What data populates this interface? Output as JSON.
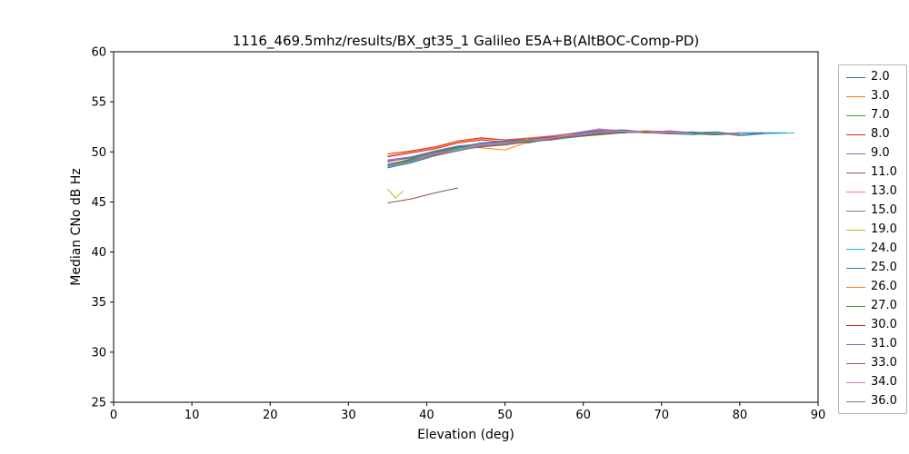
{
  "figure": {
    "title": "1116_469.5mhz/results/BX_gt35_1 Galileo E5A+B(AltBOC-Comp-PD)",
    "xlabel": "Elevation (deg)",
    "ylabel": "Median CNo dB Hz"
  },
  "chart_data": {
    "type": "line",
    "title": "1116_469.5mhz/results/BX_gt35_1 Galileo E5A+B(AltBOC-Comp-PD)",
    "xlabel": "Elevation (deg)",
    "ylabel": "Median CNo dB Hz",
    "xlim": [
      0,
      90
    ],
    "ylim": [
      25,
      60
    ],
    "xticks": [
      0,
      10,
      20,
      30,
      40,
      50,
      60,
      70,
      80,
      90
    ],
    "yticks": [
      25,
      30,
      35,
      40,
      45,
      50,
      55,
      60
    ],
    "grid": false,
    "legend_position": "right",
    "series": [
      {
        "name": "2.0",
        "color": "#1f77b4",
        "x": [
          35,
          38,
          41,
          44,
          47,
          50,
          53,
          56,
          59,
          62,
          65,
          68,
          71,
          74,
          77,
          80,
          83,
          86
        ],
        "y": [
          48.4,
          48.9,
          49.6,
          50.2,
          50.5,
          50.8,
          51.0,
          51.3,
          51.6,
          52.0,
          51.9,
          52.1,
          51.8,
          51.9,
          52.0,
          51.7,
          51.9,
          51.9
        ]
      },
      {
        "name": "3.0",
        "color": "#ff7f0e",
        "x": [
          35,
          38,
          41,
          44,
          47,
          50,
          53,
          56,
          59,
          62,
          65,
          68,
          71,
          74,
          77
        ],
        "y": [
          49.0,
          49.4,
          50.1,
          50.6,
          50.4,
          50.2,
          51.0,
          51.2,
          51.5,
          51.8,
          51.9,
          52.0,
          52.0,
          51.8,
          51.7
        ]
      },
      {
        "name": "7.0",
        "color": "#2ca02c",
        "x": [
          36,
          38,
          41,
          44,
          47,
          50,
          53,
          56,
          59,
          62,
          65,
          68,
          71,
          74,
          77,
          80
        ],
        "y": [
          48.7,
          49.1,
          49.8,
          50.3,
          50.6,
          51.0,
          50.9,
          51.3,
          51.6,
          51.8,
          52.0,
          51.9,
          52.0,
          51.8,
          51.7,
          51.8
        ]
      },
      {
        "name": "8.0",
        "color": "#d62728",
        "x": [
          35,
          38,
          41,
          44,
          47,
          50,
          53,
          56,
          59,
          62,
          65,
          68,
          71,
          74,
          77,
          80,
          83
        ],
        "y": [
          49.5,
          49.9,
          50.3,
          50.9,
          51.2,
          51.0,
          51.3,
          51.3,
          51.6,
          51.8,
          51.9,
          52.1,
          52.0,
          51.9,
          51.8,
          51.7,
          51.8
        ]
      },
      {
        "name": "9.0",
        "color": "#9467bd",
        "x": [
          35,
          38,
          41,
          44,
          47,
          50,
          53,
          56,
          59,
          62,
          65,
          68,
          71,
          74,
          77
        ],
        "y": [
          49.2,
          49.5,
          50.0,
          50.5,
          50.8,
          50.7,
          51.1,
          51.4,
          51.8,
          52.2,
          52.0,
          51.9,
          52.1,
          51.9,
          51.8
        ]
      },
      {
        "name": "11.0",
        "color": "#8c564b",
        "x": [
          35,
          38,
          41,
          44
        ],
        "y": [
          44.9,
          45.3,
          45.9,
          46.4
        ]
      },
      {
        "name": "13.0",
        "color": "#e377c2",
        "x": [
          36,
          38,
          41,
          44,
          47,
          50,
          53,
          56,
          59,
          62,
          65,
          68,
          71,
          74
        ],
        "y": [
          48.6,
          49.0,
          49.7,
          50.1,
          50.6,
          50.8,
          51.2,
          51.5,
          51.9,
          52.3,
          52.1,
          52.0,
          51.9,
          51.8
        ]
      },
      {
        "name": "15.0",
        "color": "#7f7f7f",
        "x": [
          35,
          38,
          41,
          44,
          47,
          50,
          53,
          56,
          59,
          62,
          65,
          68,
          71,
          74,
          77,
          80
        ],
        "y": [
          48.8,
          49.2,
          49.8,
          50.4,
          50.6,
          51.0,
          51.2,
          51.5,
          51.7,
          52.0,
          52.1,
          51.9,
          52.0,
          51.9,
          51.8,
          51.7
        ]
      },
      {
        "name": "19.0",
        "color": "#bcbd22",
        "x": [
          35,
          36,
          37
        ],
        "y": [
          46.3,
          45.4,
          46.1
        ]
      },
      {
        "name": "24.0",
        "color": "#17becf",
        "x": [
          35,
          38,
          41,
          44,
          47,
          50,
          53,
          56,
          59,
          62,
          65,
          68,
          71,
          74,
          77,
          80,
          83,
          87
        ],
        "y": [
          48.5,
          49.0,
          49.7,
          50.3,
          50.7,
          50.9,
          51.0,
          51.2,
          51.5,
          51.7,
          51.9,
          52.0,
          51.8,
          51.7,
          51.9,
          51.6,
          51.8,
          51.9
        ]
      },
      {
        "name": "25.0",
        "color": "#1f77b4",
        "x": [
          35,
          38,
          41,
          44,
          47,
          50,
          53,
          56,
          59,
          62,
          65,
          68,
          71,
          74,
          77,
          80,
          83
        ],
        "y": [
          49.1,
          49.4,
          50.0,
          50.5,
          50.9,
          51.1,
          51.0,
          51.4,
          51.8,
          52.1,
          52.2,
          52.0,
          51.9,
          52.0,
          51.8,
          51.9,
          51.9
        ]
      },
      {
        "name": "26.0",
        "color": "#ff7f0e",
        "x": [
          35,
          38,
          41,
          44,
          47,
          50,
          53,
          56,
          59,
          62,
          65,
          68,
          71,
          74,
          77,
          80
        ],
        "y": [
          49.6,
          50.0,
          50.4,
          51.0,
          51.3,
          51.2,
          51.4,
          51.6,
          51.7,
          51.9,
          52.0,
          52.1,
          52.0,
          51.9,
          51.8,
          51.8
        ]
      },
      {
        "name": "27.0",
        "color": "#2ca02c",
        "x": [
          36,
          38,
          41,
          44,
          47,
          50,
          53,
          56,
          59,
          62,
          65,
          68,
          71,
          74,
          77
        ],
        "y": [
          48.9,
          49.3,
          49.9,
          50.4,
          50.8,
          51.0,
          51.1,
          51.3,
          51.6,
          51.9,
          52.0,
          52.0,
          51.9,
          51.8,
          51.7
        ]
      },
      {
        "name": "30.0",
        "color": "#d62728",
        "x": [
          35,
          38,
          41,
          44,
          47,
          50,
          53,
          56,
          59,
          62,
          65,
          68,
          71,
          74
        ],
        "y": [
          49.8,
          50.1,
          50.5,
          51.1,
          51.4,
          51.2,
          51.3,
          51.5,
          51.6,
          51.8,
          51.9,
          52.0,
          52.0,
          51.9
        ]
      },
      {
        "name": "31.0",
        "color": "#9467bd",
        "x": [
          35,
          38,
          41,
          44,
          47,
          50,
          53,
          56,
          59,
          62,
          65,
          68,
          71,
          74,
          77,
          80
        ],
        "y": [
          49.0,
          49.5,
          50.1,
          50.6,
          50.8,
          51.1,
          51.3,
          51.6,
          51.9,
          52.2,
          52.1,
          52.0,
          52.1,
          51.9,
          51.8,
          51.9
        ]
      },
      {
        "name": "33.0",
        "color": "#8c564b",
        "x": [
          35,
          38,
          41,
          44,
          47,
          50,
          53,
          56,
          59,
          62,
          65,
          68,
          71,
          74,
          77
        ],
        "y": [
          48.7,
          49.2,
          49.7,
          50.2,
          50.5,
          50.7,
          51.0,
          51.3,
          51.5,
          51.7,
          51.9,
          52.0,
          51.8,
          51.9,
          51.7
        ]
      },
      {
        "name": "34.0",
        "color": "#e377c2",
        "x": [
          36,
          38,
          41,
          44,
          47,
          50,
          53,
          56,
          59,
          62,
          65,
          68,
          71,
          74
        ],
        "y": [
          48.8,
          49.1,
          49.8,
          50.2,
          50.7,
          50.9,
          51.1,
          51.4,
          51.7,
          52.0,
          52.1,
          51.9,
          52.0,
          51.8
        ]
      },
      {
        "name": "36.0",
        "color": "#7f7f7f",
        "x": [
          35,
          38,
          41,
          44,
          47,
          50,
          53,
          56,
          59,
          62,
          65,
          68,
          71,
          74,
          77,
          80,
          83
        ],
        "y": [
          48.6,
          49.1,
          49.6,
          50.1,
          50.6,
          50.8,
          51.1,
          51.2,
          51.6,
          51.8,
          52.0,
          51.9,
          51.8,
          51.9,
          51.8,
          51.7,
          51.8
        ]
      }
    ]
  }
}
